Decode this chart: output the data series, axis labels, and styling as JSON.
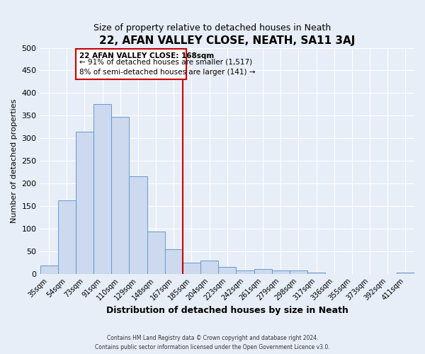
{
  "title": "22, AFAN VALLEY CLOSE, NEATH, SA11 3AJ",
  "subtitle": "Size of property relative to detached houses in Neath",
  "xlabel": "Distribution of detached houses by size in Neath",
  "ylabel": "Number of detached properties",
  "bar_labels": [
    "35sqm",
    "54sqm",
    "73sqm",
    "91sqm",
    "110sqm",
    "129sqm",
    "148sqm",
    "167sqm",
    "185sqm",
    "204sqm",
    "223sqm",
    "242sqm",
    "261sqm",
    "279sqm",
    "298sqm",
    "317sqm",
    "336sqm",
    "355sqm",
    "373sqm",
    "392sqm",
    "411sqm"
  ],
  "bar_values": [
    18,
    163,
    315,
    375,
    348,
    215,
    93,
    55,
    25,
    30,
    15,
    7,
    10,
    8,
    7,
    2,
    0,
    0,
    0,
    0,
    2
  ],
  "bar_color": "#ccd9ee",
  "bar_edge_color": "#6699cc",
  "vline_x": 7.5,
  "vline_color": "#cc0000",
  "ylim": [
    0,
    500
  ],
  "yticks": [
    0,
    50,
    100,
    150,
    200,
    250,
    300,
    350,
    400,
    450,
    500
  ],
  "annotation_title": "22 AFAN VALLEY CLOSE: 168sqm",
  "annotation_line1": "← 91% of detached houses are smaller (1,517)",
  "annotation_line2": "8% of semi-detached houses are larger (141) →",
  "annotation_box_color": "#ffffff",
  "annotation_box_edge": "#cc0000",
  "footer_line1": "Contains HM Land Registry data © Crown copyright and database right 2024.",
  "footer_line2": "Contains public sector information licensed under the Open Government Licence v3.0.",
  "background_color": "#e8eef7",
  "plot_bg_color": "#e8eef7",
  "title_fontsize": 11,
  "subtitle_fontsize": 9,
  "xlabel_fontsize": 9,
  "ylabel_fontsize": 8
}
